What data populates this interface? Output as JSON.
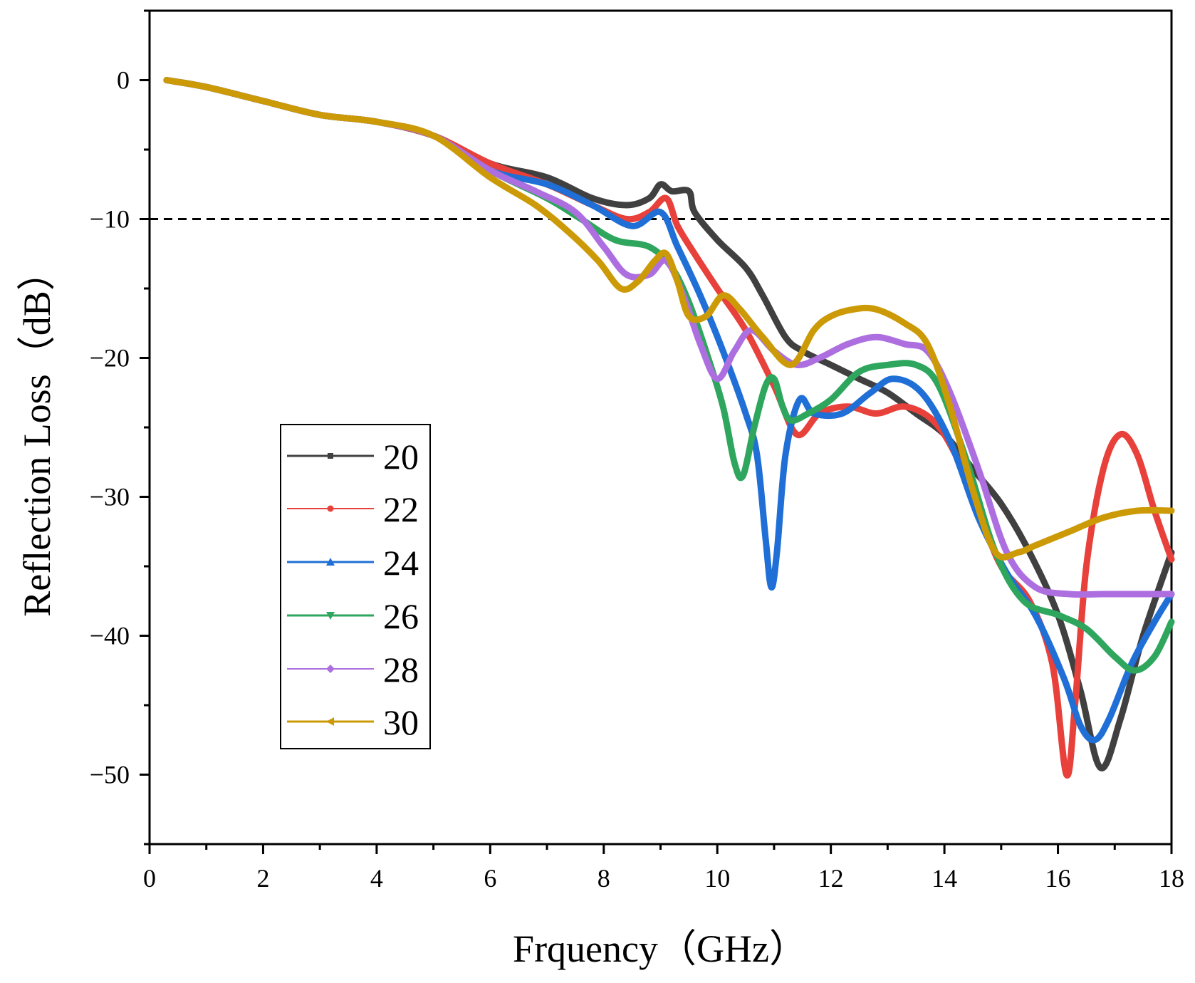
{
  "chart_data": {
    "type": "line",
    "title": "",
    "xlabel": "Frquency（GHz）",
    "ylabel": "Reflection Loss（dB）",
    "xlim": [
      0,
      18
    ],
    "ylim": [
      -55,
      5
    ],
    "xticks": [
      0,
      2,
      4,
      6,
      8,
      10,
      12,
      14,
      16,
      18
    ],
    "yticks": [
      0,
      -10,
      -20,
      -30,
      -40,
      -50
    ],
    "ytick_labels": [
      "0",
      "−10",
      "−20",
      "−30",
      "−40",
      "−50"
    ],
    "grid": false,
    "reference_line": {
      "y": -10,
      "style": "dashed",
      "color": "#000000"
    },
    "legend_position": "center-left",
    "series": [
      {
        "name": "20",
        "color": "#404040",
        "marker": "square",
        "x": [
          0.3,
          1,
          2,
          3,
          4,
          5,
          6,
          7,
          7.8,
          8.4,
          8.8,
          9.0,
          9.2,
          9.5,
          9.6,
          10,
          10.5,
          10.8,
          11.2,
          11.5,
          12,
          12.5,
          13,
          13.5,
          14,
          14.5,
          15,
          15.5,
          16,
          16.4,
          16.75,
          17.1,
          17.5,
          18
        ],
        "y": [
          0,
          -0.5,
          -1.5,
          -2.5,
          -3,
          -4,
          -6,
          -7,
          -8.5,
          -9,
          -8.5,
          -7.5,
          -8,
          -8,
          -9.5,
          -11.5,
          -13.5,
          -15.5,
          -18.5,
          -19.5,
          -20.5,
          -21.5,
          -22.5,
          -24,
          -25.5,
          -28,
          -30.5,
          -34,
          -38.5,
          -44,
          -49.5,
          -46,
          -40,
          -34
        ]
      },
      {
        "name": "22",
        "color": "#e8403a",
        "marker": "circle",
        "x": [
          0.3,
          1,
          2,
          3,
          4,
          5,
          6,
          7,
          7.8,
          8.4,
          8.8,
          9.1,
          9.3,
          9.6,
          10,
          10.5,
          11,
          11.4,
          11.8,
          12.3,
          12.8,
          13.3,
          13.8,
          14.2,
          14.6,
          15,
          15.5,
          15.9,
          16.15,
          16.3,
          16.5,
          16.8,
          17.1,
          17.4,
          17.7,
          18
        ],
        "y": [
          0,
          -0.5,
          -1.5,
          -2.5,
          -3,
          -4,
          -6,
          -7.5,
          -9,
          -10,
          -9.5,
          -8.5,
          -10.5,
          -12.5,
          -15,
          -18,
          -22,
          -25.5,
          -24,
          -23.5,
          -24,
          -23.5,
          -24.5,
          -27,
          -31,
          -35,
          -37.5,
          -42,
          -50,
          -45,
          -35,
          -28,
          -25.5,
          -27,
          -31,
          -34.5
        ]
      },
      {
        "name": "24",
        "color": "#1f6fd6",
        "marker": "triangle-up",
        "x": [
          0.3,
          1,
          2,
          3,
          4,
          5,
          6,
          7,
          7.8,
          8.5,
          9.0,
          9.3,
          9.7,
          10.1,
          10.5,
          10.7,
          10.85,
          10.95,
          11.05,
          11.2,
          11.45,
          11.7,
          12.2,
          12.7,
          13.1,
          13.6,
          14.1,
          14.6,
          15.1,
          15.6,
          16.1,
          16.4,
          16.65,
          16.9,
          17.3,
          17.7,
          18
        ],
        "y": [
          0,
          -0.5,
          -1.5,
          -2.5,
          -3,
          -4,
          -6.5,
          -7.5,
          -9,
          -10.5,
          -9.5,
          -12,
          -15.5,
          -19.5,
          -24,
          -27,
          -33,
          -36.5,
          -34,
          -27,
          -23,
          -24,
          -24,
          -22.5,
          -21.5,
          -22.5,
          -26,
          -31.5,
          -35.5,
          -38.5,
          -43,
          -46.5,
          -47.5,
          -46,
          -42,
          -39,
          -37
        ]
      },
      {
        "name": "26",
        "color": "#2ea65d",
        "marker": "triangle-down",
        "x": [
          0.3,
          1,
          2,
          3,
          4,
          5,
          6,
          7,
          7.6,
          8.2,
          8.8,
          9.2,
          9.5,
          9.8,
          10.1,
          10.3,
          10.45,
          10.65,
          10.85,
          11.0,
          11.15,
          11.3,
          11.6,
          12,
          12.5,
          13,
          13.5,
          13.9,
          14.4,
          14.9,
          15.4,
          16,
          16.5,
          17,
          17.35,
          17.7,
          18
        ],
        "y": [
          0,
          -0.5,
          -1.5,
          -2.5,
          -3,
          -4,
          -6.5,
          -8.5,
          -10,
          -11.5,
          -12,
          -13.5,
          -16,
          -19.5,
          -23.5,
          -27.5,
          -28.5,
          -25,
          -22,
          -21.5,
          -23.5,
          -24.5,
          -24,
          -23,
          -21,
          -20.5,
          -20.5,
          -22,
          -27.5,
          -34,
          -37.5,
          -38.5,
          -39.5,
          -41.5,
          -42.5,
          -41.5,
          -39
        ]
      },
      {
        "name": "28",
        "color": "#ad6fe0",
        "marker": "diamond",
        "x": [
          0.3,
          1,
          2,
          3,
          4,
          5,
          6,
          6.8,
          7.5,
          8.0,
          8.4,
          8.8,
          9.1,
          9.4,
          9.7,
          10.0,
          10.3,
          10.6,
          11.0,
          11.4,
          11.8,
          12.3,
          12.8,
          13.3,
          13.7,
          14.1,
          14.6,
          15.1,
          15.6,
          16.2,
          16.8,
          17.4,
          18
        ],
        "y": [
          0,
          -0.5,
          -1.5,
          -2.5,
          -3,
          -4,
          -6.5,
          -8,
          -9.5,
          -12,
          -14,
          -14,
          -13,
          -15.5,
          -19,
          -21.5,
          -19.5,
          -18,
          -19.5,
          -20.5,
          -20,
          -19,
          -18.5,
          -19,
          -19.5,
          -22.5,
          -28,
          -34,
          -36.5,
          -37,
          -37,
          -37,
          -37
        ]
      },
      {
        "name": "30",
        "color": "#cc9a06",
        "marker": "triangle-left",
        "x": [
          0.3,
          1,
          2,
          3,
          4,
          5,
          6,
          6.8,
          7.4,
          7.9,
          8.3,
          8.6,
          8.9,
          9.1,
          9.3,
          9.5,
          9.8,
          10.1,
          10.4,
          10.8,
          11.3,
          11.7,
          12.0,
          12.4,
          12.8,
          13.3,
          13.7,
          14.1,
          14.5,
          14.9,
          15.3,
          15.6,
          16.2,
          16.8,
          17.4,
          18
        ],
        "y": [
          0,
          -0.5,
          -1.5,
          -2.5,
          -3,
          -4,
          -7,
          -9,
          -11,
          -13,
          -15,
          -14.5,
          -13,
          -12.5,
          -14.5,
          -17,
          -17,
          -15.5,
          -16.5,
          -18.5,
          -20.5,
          -18,
          -17,
          -16.5,
          -16.5,
          -17.5,
          -19,
          -23.5,
          -29.5,
          -34,
          -34,
          -33.5,
          -32.5,
          -31.5,
          -31,
          -31
        ]
      }
    ]
  }
}
